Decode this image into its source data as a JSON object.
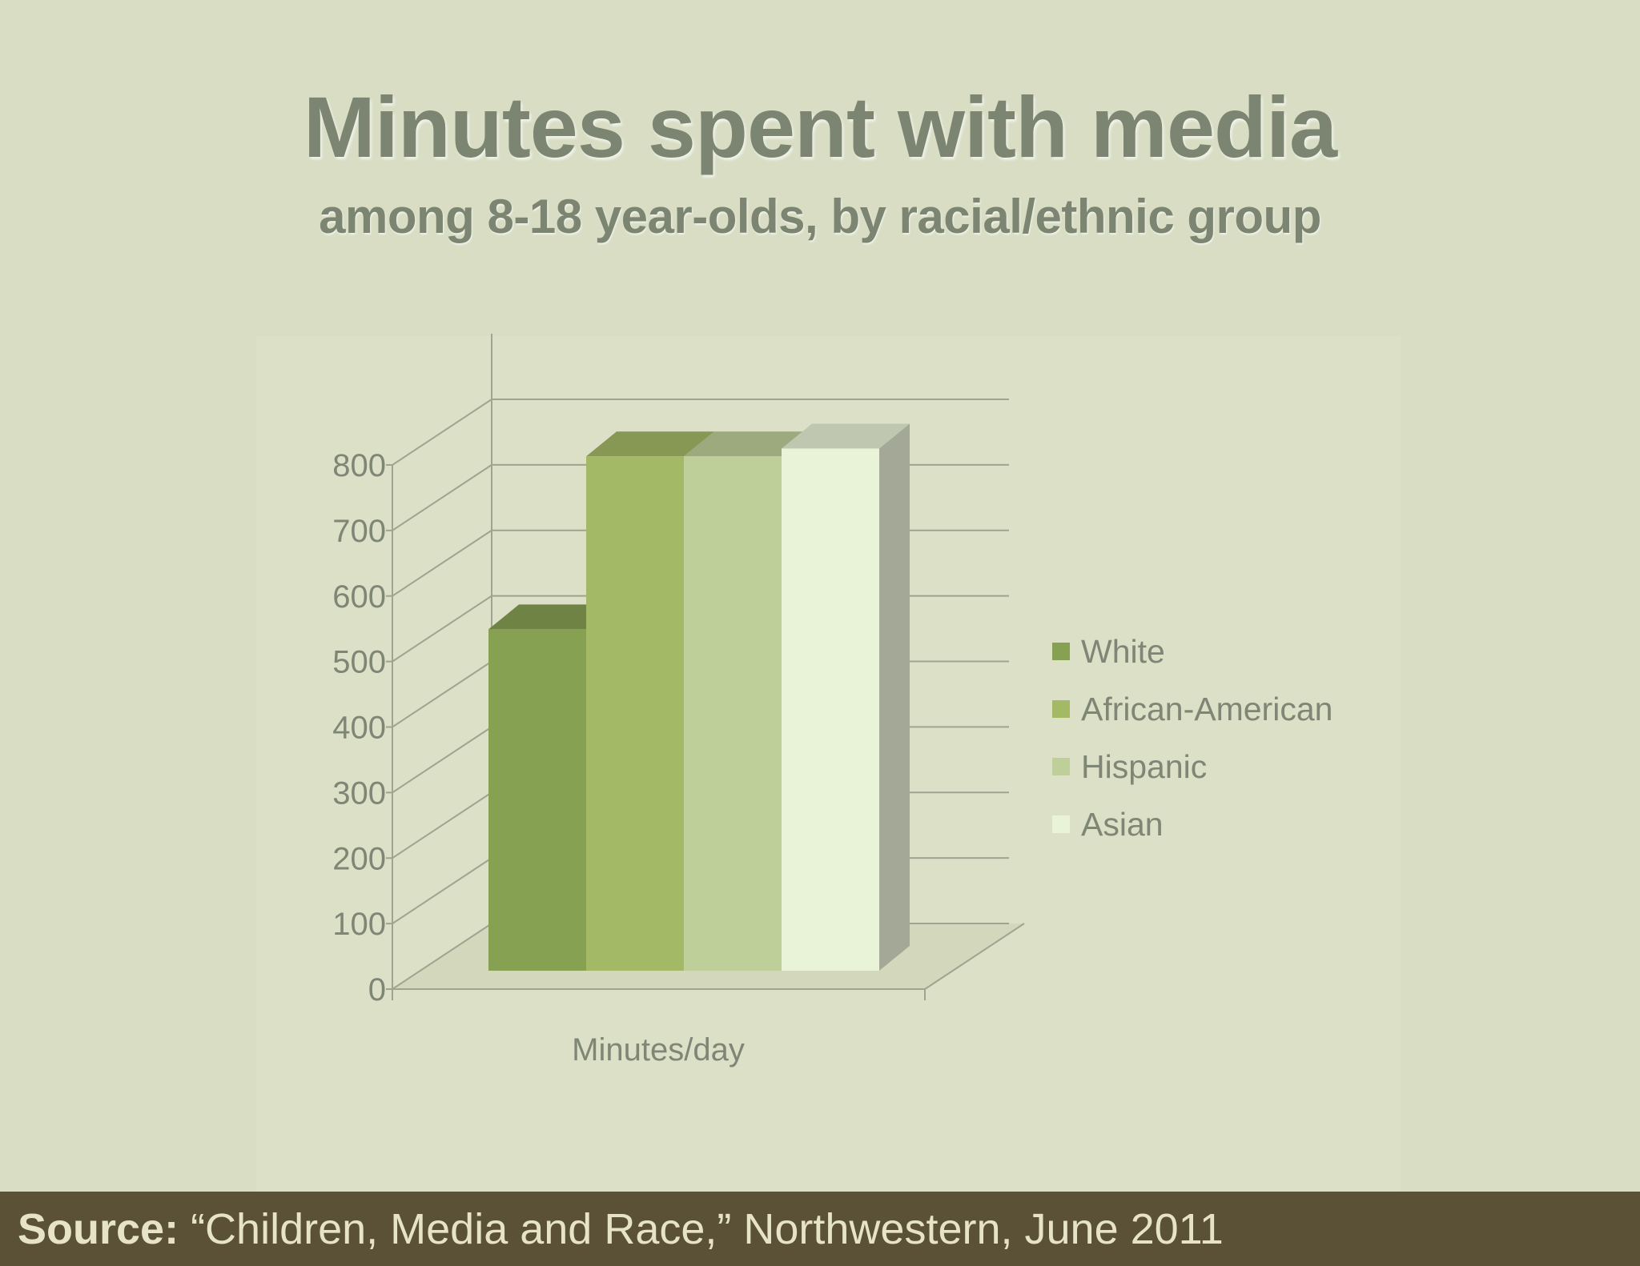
{
  "title": "Minutes spent with media",
  "subtitle": "among 8-18 year-olds, by racial/ethnic group",
  "source": {
    "label": "Source:",
    "text": " “Children, Media and Race,” Northwestern, June 2011"
  },
  "chart_data": {
    "type": "bar",
    "style": "3d clustered column",
    "categories": [
      "Minutes/day"
    ],
    "series": [
      {
        "name": "White",
        "values": [
          521
        ],
        "color": "#87a153"
      },
      {
        "name": "African-American",
        "values": [
          785
        ],
        "color": "#a4b966"
      },
      {
        "name": "Hispanic",
        "values": [
          785
        ],
        "color": "#bfcf99"
      },
      {
        "name": "Asian",
        "values": [
          797
        ],
        "color": "#e9f3d7"
      }
    ],
    "ylim": [
      0,
      800
    ],
    "yticks": [
      "0",
      "100",
      "200",
      "300",
      "400",
      "500",
      "600",
      "700",
      "800"
    ],
    "xlabel": "Minutes/day",
    "ylabel": "",
    "grid": true,
    "legend": "right"
  }
}
